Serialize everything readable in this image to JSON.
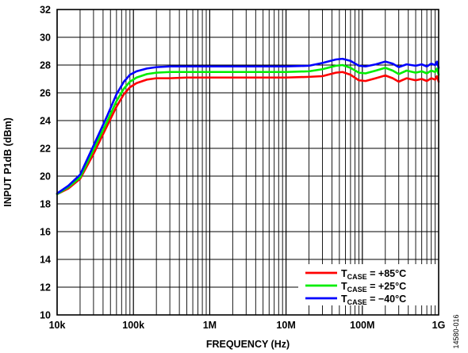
{
  "figure_id": "14580-016",
  "chart_data": {
    "type": "line",
    "xlabel": "FREQUENCY (Hz)",
    "ylabel": "INPUT P1dB (dBm)",
    "x_scale": "log",
    "xlim": [
      10000,
      1000000000
    ],
    "ylim": [
      10,
      32
    ],
    "grid": true,
    "legend_position": "bottom-right",
    "x_ticks": [
      {
        "value": 10000,
        "label": "10k"
      },
      {
        "value": 100000,
        "label": "100k"
      },
      {
        "value": 1000000,
        "label": "1M"
      },
      {
        "value": 10000000,
        "label": "10M"
      },
      {
        "value": 100000000,
        "label": "100M"
      },
      {
        "value": 1000000000,
        "label": "1G"
      }
    ],
    "y_ticks": [
      10,
      12,
      14,
      16,
      18,
      20,
      22,
      24,
      26,
      28,
      30,
      32
    ],
    "series": [
      {
        "name_main": "T",
        "name_sub": "CASE",
        "name_value": " = +85°C",
        "color": "#ff0000",
        "points": [
          [
            10000,
            18.7
          ],
          [
            14000,
            19.1
          ],
          [
            20000,
            19.8
          ],
          [
            30000,
            21.6
          ],
          [
            45000,
            23.6
          ],
          [
            60000,
            25.0
          ],
          [
            75000,
            25.9
          ],
          [
            90000,
            26.4
          ],
          [
            110000,
            26.7
          ],
          [
            150000,
            26.95
          ],
          [
            200000,
            27.05
          ],
          [
            300000,
            27.05
          ],
          [
            500000,
            27.1
          ],
          [
            1000000,
            27.1
          ],
          [
            3000000,
            27.1
          ],
          [
            10000000,
            27.1
          ],
          [
            20000000,
            27.15
          ],
          [
            30000000,
            27.2
          ],
          [
            45000000,
            27.45
          ],
          [
            55000000,
            27.5
          ],
          [
            70000000,
            27.3
          ],
          [
            90000000,
            26.9
          ],
          [
            110000000,
            26.85
          ],
          [
            150000000,
            27.05
          ],
          [
            200000000,
            27.25
          ],
          [
            250000000,
            27.05
          ],
          [
            300000000,
            26.8
          ],
          [
            380000000,
            27.05
          ],
          [
            500000000,
            26.9
          ],
          [
            600000000,
            27.0
          ],
          [
            700000000,
            26.85
          ],
          [
            800000000,
            27.05
          ],
          [
            900000000,
            26.95
          ],
          [
            950000000,
            27.2
          ],
          [
            1000000000,
            26.8
          ]
        ]
      },
      {
        "name_main": "T",
        "name_sub": "CASE",
        "name_value": " = +25°C",
        "color": "#00ee00",
        "points": [
          [
            10000,
            18.7
          ],
          [
            14000,
            19.2
          ],
          [
            20000,
            19.9
          ],
          [
            30000,
            21.9
          ],
          [
            45000,
            23.9
          ],
          [
            60000,
            25.4
          ],
          [
            75000,
            26.3
          ],
          [
            90000,
            26.8
          ],
          [
            110000,
            27.1
          ],
          [
            150000,
            27.35
          ],
          [
            200000,
            27.45
          ],
          [
            300000,
            27.5
          ],
          [
            500000,
            27.5
          ],
          [
            1000000,
            27.5
          ],
          [
            3000000,
            27.5
          ],
          [
            10000000,
            27.5
          ],
          [
            20000000,
            27.55
          ],
          [
            30000000,
            27.7
          ],
          [
            45000000,
            27.95
          ],
          [
            55000000,
            28.0
          ],
          [
            70000000,
            27.8
          ],
          [
            90000000,
            27.45
          ],
          [
            110000000,
            27.4
          ],
          [
            150000000,
            27.6
          ],
          [
            200000000,
            27.8
          ],
          [
            250000000,
            27.6
          ],
          [
            300000000,
            27.35
          ],
          [
            380000000,
            27.6
          ],
          [
            500000000,
            27.45
          ],
          [
            600000000,
            27.55
          ],
          [
            700000000,
            27.4
          ],
          [
            800000000,
            27.6
          ],
          [
            900000000,
            27.5
          ],
          [
            950000000,
            27.75
          ],
          [
            1000000000,
            27.3
          ]
        ]
      },
      {
        "name_main": "T",
        "name_sub": "CASE",
        "name_value": " = −40°C",
        "color": "#0000ff",
        "points": [
          [
            10000,
            18.75
          ],
          [
            14000,
            19.3
          ],
          [
            20000,
            20.1
          ],
          [
            30000,
            22.2
          ],
          [
            45000,
            24.3
          ],
          [
            60000,
            25.9
          ],
          [
            75000,
            26.8
          ],
          [
            90000,
            27.3
          ],
          [
            110000,
            27.55
          ],
          [
            150000,
            27.75
          ],
          [
            200000,
            27.85
          ],
          [
            300000,
            27.9
          ],
          [
            500000,
            27.9
          ],
          [
            1000000,
            27.9
          ],
          [
            3000000,
            27.9
          ],
          [
            10000000,
            27.9
          ],
          [
            20000000,
            27.95
          ],
          [
            30000000,
            28.15
          ],
          [
            45000000,
            28.4
          ],
          [
            55000000,
            28.45
          ],
          [
            70000000,
            28.3
          ],
          [
            90000000,
            27.95
          ],
          [
            110000000,
            27.9
          ],
          [
            150000000,
            28.05
          ],
          [
            200000000,
            28.25
          ],
          [
            250000000,
            28.1
          ],
          [
            300000000,
            27.85
          ],
          [
            380000000,
            28.05
          ],
          [
            500000000,
            27.95
          ],
          [
            600000000,
            28.05
          ],
          [
            700000000,
            27.9
          ],
          [
            800000000,
            28.1
          ],
          [
            900000000,
            28.0
          ],
          [
            950000000,
            28.25
          ],
          [
            1000000000,
            27.8
          ]
        ]
      }
    ]
  }
}
